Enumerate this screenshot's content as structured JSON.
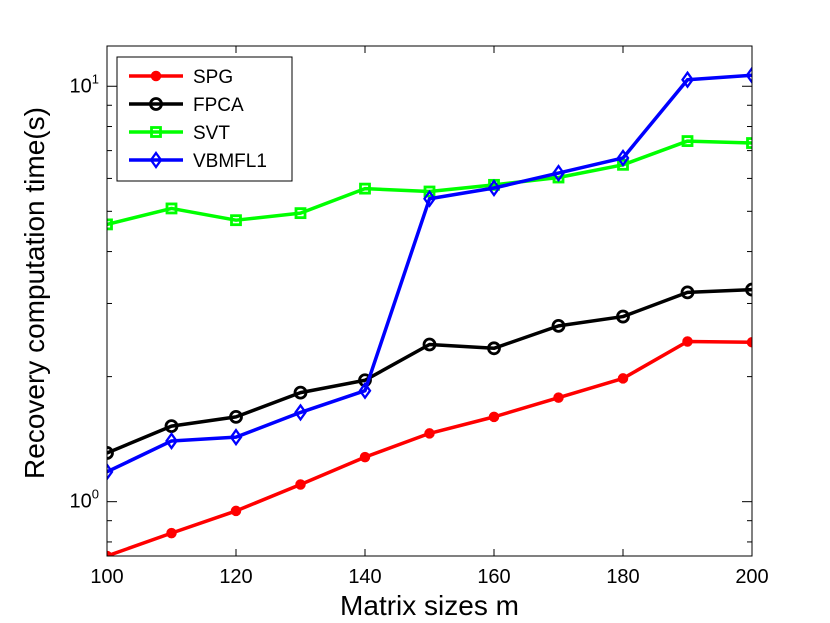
{
  "chart_data": {
    "type": "line",
    "xlabel": "Matrix sizes m",
    "ylabel": "Recovery computation time(s)",
    "yscale": "log",
    "xlim": [
      100,
      200
    ],
    "ylim": [
      0.74,
      12.5
    ],
    "xticks": [
      100,
      120,
      140,
      160,
      180,
      200
    ],
    "yticks": [
      {
        "base": "10",
        "exp": "0",
        "value": 1
      },
      {
        "base": "10",
        "exp": "1",
        "value": 10
      }
    ],
    "legend_position": "top-left",
    "x": [
      100,
      110,
      120,
      130,
      140,
      150,
      160,
      170,
      180,
      190,
      200
    ],
    "series": [
      {
        "name": "SPG",
        "color": "#ff0000",
        "marker": "filled-circle",
        "values": [
          0.74,
          0.84,
          0.95,
          1.1,
          1.28,
          1.46,
          1.6,
          1.78,
          1.98,
          2.43,
          2.42
        ]
      },
      {
        "name": "FPCA",
        "color": "#000000",
        "marker": "open-circle",
        "values": [
          1.31,
          1.52,
          1.6,
          1.83,
          1.96,
          2.39,
          2.34,
          2.65,
          2.79,
          3.19,
          3.24
        ]
      },
      {
        "name": "SVT",
        "color": "#00ff00",
        "marker": "open-square",
        "values": [
          4.65,
          5.08,
          4.76,
          4.95,
          5.67,
          5.58,
          5.79,
          6.03,
          6.47,
          7.38,
          7.3
        ]
      },
      {
        "name": "VBMFL1",
        "color": "#0000ff",
        "marker": "open-diamond",
        "values": [
          1.18,
          1.4,
          1.43,
          1.64,
          1.85,
          5.36,
          5.69,
          6.18,
          6.72,
          10.37,
          10.63
        ]
      }
    ]
  }
}
